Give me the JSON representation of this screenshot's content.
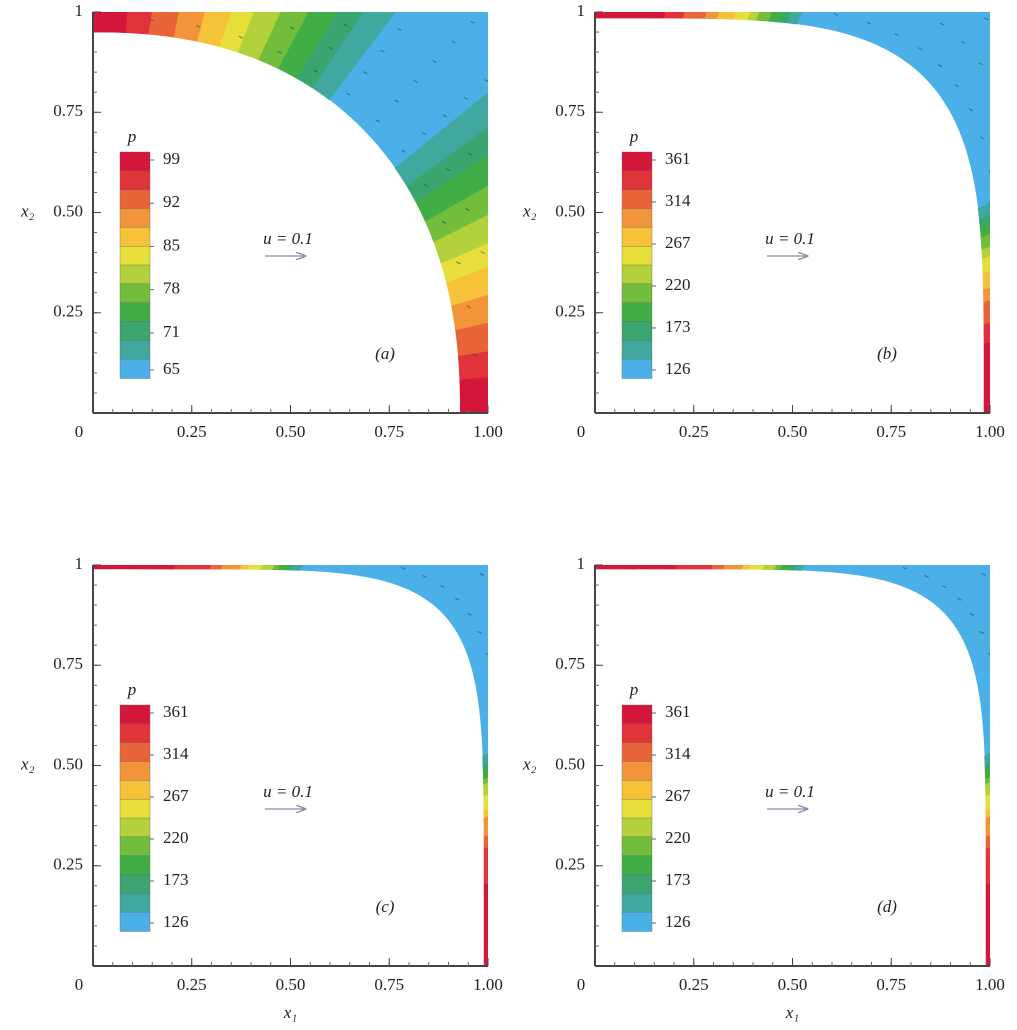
{
  "chart_data": [
    {
      "type": "contour",
      "panel_label": "(a)",
      "y_label": "x₂",
      "legend_title": "p",
      "annotation": "u = 0.1",
      "xlim": [
        0,
        1
      ],
      "ylim": [
        0,
        1
      ],
      "xticks": [
        0,
        0.25,
        {
          "value": 0.5,
          "label": "0.50"
        },
        0.75,
        {
          "value": 1,
          "label": "1.00"
        }
      ],
      "yticks": [
        0.25,
        {
          "value": 0.5,
          "label": "0.50"
        },
        0.75,
        1
      ],
      "colorbar_ticks": [
        99,
        92,
        85,
        78,
        71,
        65
      ]
    },
    {
      "type": "contour",
      "panel_label": "(b)",
      "y_label": "x₂",
      "legend_title": "p",
      "annotation": "u = 0.1",
      "xlim": [
        0,
        1
      ],
      "ylim": [
        0,
        1
      ],
      "xticks": [
        0,
        0.25,
        {
          "value": 0.5,
          "label": "0.50"
        },
        0.75,
        {
          "value": 1,
          "label": "1.00"
        }
      ],
      "yticks": [
        0.25,
        {
          "value": 0.5,
          "label": "0.50"
        },
        0.75,
        1
      ],
      "colorbar_ticks": [
        361,
        314,
        267,
        220,
        173,
        126
      ]
    },
    {
      "type": "contour",
      "panel_label": "(c)",
      "x_label": "x₁",
      "y_label": "x₂",
      "legend_title": "p",
      "annotation": "u = 0.1",
      "xlim": [
        0,
        1
      ],
      "ylim": [
        0,
        1
      ],
      "xticks": [
        0,
        0.25,
        {
          "value": 0.5,
          "label": "0.50"
        },
        0.75,
        {
          "value": 1,
          "label": "1.00"
        }
      ],
      "yticks": [
        0.25,
        {
          "value": 0.5,
          "label": "0.50"
        },
        0.75,
        1
      ],
      "colorbar_ticks": [
        361,
        314,
        267,
        220,
        173,
        126
      ]
    },
    {
      "type": "contour",
      "panel_label": "(d)",
      "x_label": "x₁",
      "y_label": "x₂",
      "legend_title": "p",
      "annotation": "u = 0.1",
      "xlim": [
        0,
        1
      ],
      "ylim": [
        0,
        1
      ],
      "xticks": [
        0,
        0.25,
        {
          "value": 0.5,
          "label": "0.50"
        },
        0.75,
        {
          "value": 1,
          "label": "1.00"
        }
      ],
      "yticks": [
        0.25,
        {
          "value": 0.5,
          "label": "0.50"
        },
        0.75,
        1
      ],
      "colorbar_ticks": [
        361,
        314,
        267,
        220,
        173,
        126
      ]
    }
  ]
}
